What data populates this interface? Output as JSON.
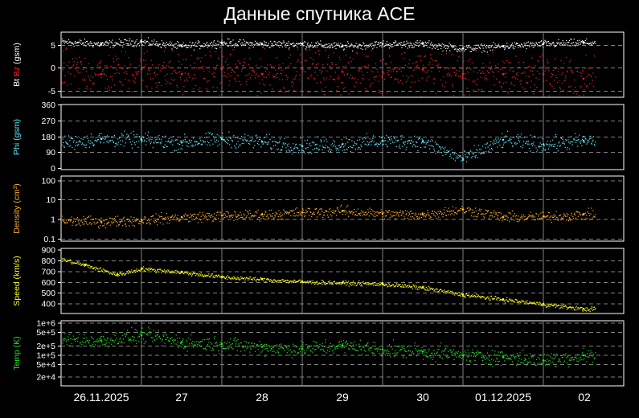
{
  "title": "Данные спутника ACE",
  "colors": {
    "background": "#000000",
    "frame": "#ffffff",
    "grid": "#808080",
    "bt": "#ffffff",
    "bz": "#ff2020",
    "phi": "#66e8ff",
    "density": "#ffb030",
    "speed": "#ffff20",
    "temp": "#20e020"
  },
  "x_axis": {
    "tick_labels": [
      "26.11.2025",
      "27",
      "28",
      "29",
      "30",
      "01.12.2025",
      "02"
    ]
  },
  "chart_data": [
    {
      "type": "scatter",
      "panel": "magnetic-field",
      "ylabel_parts": [
        "Bt",
        "Bz",
        "(gsm)"
      ],
      "ylim": [
        -6,
        8
      ],
      "yticks": [
        "5",
        "0",
        "-5"
      ],
      "grid": true,
      "series": [
        {
          "name": "Bt",
          "color": "#ffffff",
          "x_days": [
            0,
            0.5,
            1,
            1.5,
            2,
            2.5,
            3,
            3.5,
            4,
            4.5,
            5,
            5.5,
            6,
            6.5
          ],
          "values": [
            6,
            5.5,
            6,
            5,
            5.8,
            5.5,
            5.5,
            5,
            5.5,
            5.5,
            4.5,
            5,
            5.5,
            5.8
          ]
        },
        {
          "name": "Bz",
          "color": "#ff2020",
          "x_days": [
            0,
            0.5,
            1,
            1.5,
            2,
            2.5,
            3,
            3.5,
            4,
            4.5,
            5,
            5.5,
            6,
            6.5
          ],
          "values": [
            0,
            -1,
            0,
            -1,
            0,
            -1,
            0,
            -0.5,
            -0.5,
            0,
            -1,
            -1,
            -1,
            -2
          ]
        }
      ]
    },
    {
      "type": "scatter",
      "panel": "phi",
      "ylabel": "Phi (gsm)",
      "ylim": [
        0,
        360
      ],
      "yticks": [
        "360",
        "270",
        "180",
        "90",
        "0"
      ],
      "grid": true,
      "series": [
        {
          "name": "Phi",
          "color": "#66e8ff",
          "x_days": [
            0,
            0.5,
            1,
            1.5,
            2,
            2.5,
            3,
            3.5,
            4,
            4.5,
            5,
            5.5,
            6,
            6.5
          ],
          "values": [
            150,
            170,
            165,
            150,
            170,
            155,
            130,
            140,
            160,
            155,
            60,
            165,
            140,
            160
          ]
        }
      ]
    },
    {
      "type": "scatter",
      "panel": "density",
      "ylabel": "Density (cm³)",
      "log": true,
      "ylim": [
        0.1,
        150
      ],
      "yticks": [
        "100",
        "10",
        "1",
        "0.1"
      ],
      "grid": true,
      "series": [
        {
          "name": "Density",
          "color": "#ffb030",
          "x_days": [
            0,
            0.5,
            1,
            1.5,
            2,
            2.5,
            3,
            3.5,
            4,
            4.5,
            5,
            5.5,
            6,
            6.5
          ],
          "values": [
            1,
            0.9,
            1.1,
            1.5,
            1.8,
            2,
            2.5,
            3,
            2.2,
            2,
            3.5,
            1.5,
            1.6,
            2
          ]
        }
      ]
    },
    {
      "type": "scatter",
      "panel": "speed",
      "ylabel": "Speed (km/s)",
      "ylim": [
        350,
        900
      ],
      "yticks": [
        "900",
        "800",
        "700",
        "600",
        "500",
        "400"
      ],
      "grid": true,
      "series": [
        {
          "name": "Speed",
          "color": "#ffff20",
          "x_days": [
            0,
            0.3,
            0.7,
            1,
            1.5,
            2,
            2.5,
            3,
            3.5,
            4,
            4.5,
            5,
            5.5,
            6,
            6.5
          ],
          "values": [
            810,
            760,
            680,
            730,
            700,
            660,
            640,
            620,
            610,
            600,
            570,
            510,
            470,
            430,
            390
          ]
        }
      ]
    },
    {
      "type": "scatter",
      "panel": "temperature",
      "ylabel": "Temp (K)",
      "log": true,
      "ylim": [
        12000,
        1100000
      ],
      "yticks": [
        "1e+6",
        "5e+5",
        "2e+5",
        "1e+5",
        "5e+4",
        "2e+4"
      ],
      "grid": true,
      "series": [
        {
          "name": "Temp",
          "color": "#20e020",
          "x_days": [
            0,
            0.5,
            1,
            1.5,
            2,
            2.5,
            3,
            3.5,
            4,
            4.5,
            5,
            5.5,
            6,
            6.5
          ],
          "values": [
            300000,
            280000,
            400000,
            250000,
            220000,
            180000,
            160000,
            200000,
            150000,
            130000,
            100000,
            90000,
            70000,
            100000
          ]
        }
      ]
    }
  ]
}
